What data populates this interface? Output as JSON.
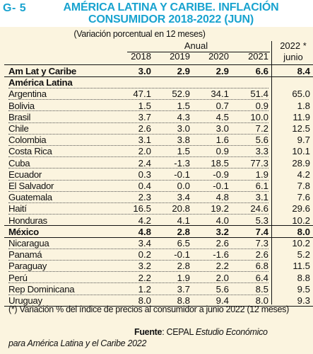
{
  "header": {
    "code": "G- 5",
    "title_line1": "AMÉRICA LATINA Y CARIBE. INFLACIÓN",
    "title_line2": "CONSUMIDOR 2018-2022 (JUN)"
  },
  "subtitle": "(Variación porcentual en 12 meses)",
  "columns": {
    "group_label": "Anual",
    "years": [
      "2018",
      "2019",
      "2020",
      "2021"
    ],
    "last_year": "2022 *",
    "last_sub": "junio"
  },
  "rows": [
    {
      "name": "Am Lat y Caribe",
      "values": [
        "3.0",
        "2.9",
        "2.9",
        "6.6",
        "8.4"
      ],
      "style": "bold"
    },
    {
      "name": "América Latina",
      "values": [],
      "style": "section"
    },
    {
      "name": "Argentina",
      "values": [
        "47.1",
        "52.9",
        "34.1",
        "51.4",
        "65.0"
      ]
    },
    {
      "name": "Bolivia",
      "values": [
        "1.5",
        "1.5",
        "0.7",
        "0.9",
        "1.8"
      ]
    },
    {
      "name": "Brasil",
      "values": [
        "3.7",
        "4.3",
        "4.5",
        "10.0",
        "11.9"
      ]
    },
    {
      "name": "Chile",
      "values": [
        "2.6",
        "3.0",
        "3.0",
        "7.2",
        "12.5"
      ]
    },
    {
      "name": "Colombia",
      "values": [
        "3.1",
        "3.8",
        "1.6",
        "5.6",
        "9.7"
      ]
    },
    {
      "name": "Costa Rica",
      "values": [
        "2.0",
        "1.5",
        "0.9",
        "3.3",
        "10.1"
      ]
    },
    {
      "name": "Cuba",
      "values": [
        "2.4",
        "-1.3",
        "18.5",
        "77.3",
        "28.9"
      ]
    },
    {
      "name": "Ecuador",
      "values": [
        "0.3",
        "-0.1",
        "-0.9",
        "1.9",
        "4.2"
      ]
    },
    {
      "name": "El Salvador",
      "values": [
        "0.4",
        "0.0",
        "-0.1",
        "6.1",
        "7.8"
      ]
    },
    {
      "name": "Guatemala",
      "values": [
        "2.3",
        "3.4",
        "4.8",
        "3.1",
        "7.6"
      ]
    },
    {
      "name": "Haití",
      "values": [
        "16.5",
        "20.8",
        "19.2",
        "24.6",
        "29.6"
      ]
    },
    {
      "name": "Honduras",
      "values": [
        "4.2",
        "4.1",
        "4.0",
        "5.3",
        "10.2"
      ]
    },
    {
      "name": "México",
      "values": [
        "4.8",
        "2.8",
        "3.2",
        "7.4",
        "8.0"
      ],
      "style": "bold"
    },
    {
      "name": "Nicaragua",
      "values": [
        "3.4",
        "6.5",
        "2.6",
        "7.3",
        "10.2"
      ]
    },
    {
      "name": "Panamá",
      "values": [
        "0.2",
        "-0.1",
        "-1.6",
        "2.6",
        "5.2"
      ]
    },
    {
      "name": "Paraguay",
      "values": [
        "3.2",
        "2.8",
        "2.2",
        "6.8",
        "11.5"
      ]
    },
    {
      "name": "Perú",
      "values": [
        "2.2",
        "1.9",
        "2.0",
        "6.4",
        "8.8"
      ]
    },
    {
      "name": "Rep Dominicana",
      "values": [
        "1.2",
        "3.7",
        "5.6",
        "8.5",
        "9.5"
      ]
    },
    {
      "name": "Uruguay",
      "values": [
        "8.0",
        "8.8",
        "9.4",
        "8.0",
        "9.3"
      ]
    }
  ],
  "note": "(*) Variación % del índice de precios al consumidor a junio 2022 (12 meses)",
  "source": {
    "label": "Fuente",
    "text": ": CEPAL ",
    "italic1": "Estudio Económico",
    "italic2": "para América Latina y el Caribe 2022"
  },
  "colors": {
    "title": "#19a3cf",
    "background": "#fbf4df"
  }
}
